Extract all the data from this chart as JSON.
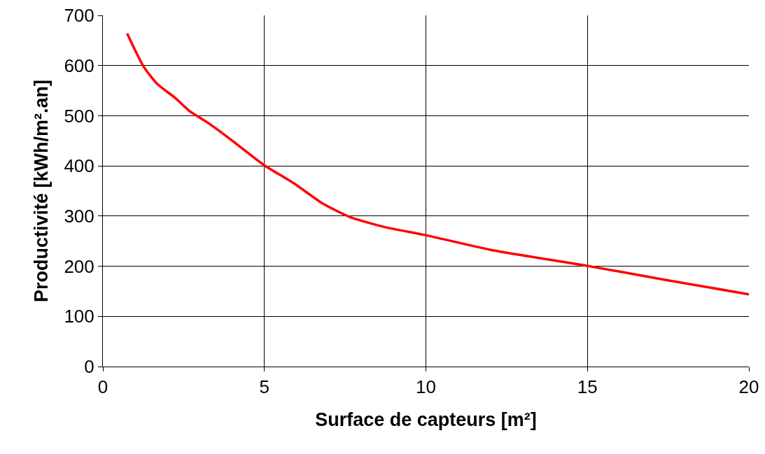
{
  "chart_data": {
    "type": "line",
    "xlabel": "Surface de capteurs [m²]",
    "ylabel": "Productivité [kWh/m².an]",
    "x": [
      0.75,
      1.26,
      1.69,
      2.23,
      2.67,
      3.32,
      3.97,
      4.98,
      5.92,
      6.78,
      7.65,
      8.73,
      9.99,
      11.98,
      14.97,
      17.4,
      20
    ],
    "series": [
      {
        "color": "#ff0000",
        "values": [
          664,
          598,
          563,
          536,
          510,
          483,
          452,
          402,
          365,
          326,
          298,
          278,
          262,
          233,
          201,
          173,
          144
        ]
      }
    ],
    "xlim": [
      0,
      20
    ],
    "xticks": [
      0,
      5,
      10,
      15,
      20
    ],
    "ylim": [
      0,
      700
    ],
    "yticks": [
      0,
      100,
      200,
      300,
      400,
      500,
      600,
      700
    ],
    "grid": true,
    "marker": "none",
    "line_style": "solid"
  }
}
